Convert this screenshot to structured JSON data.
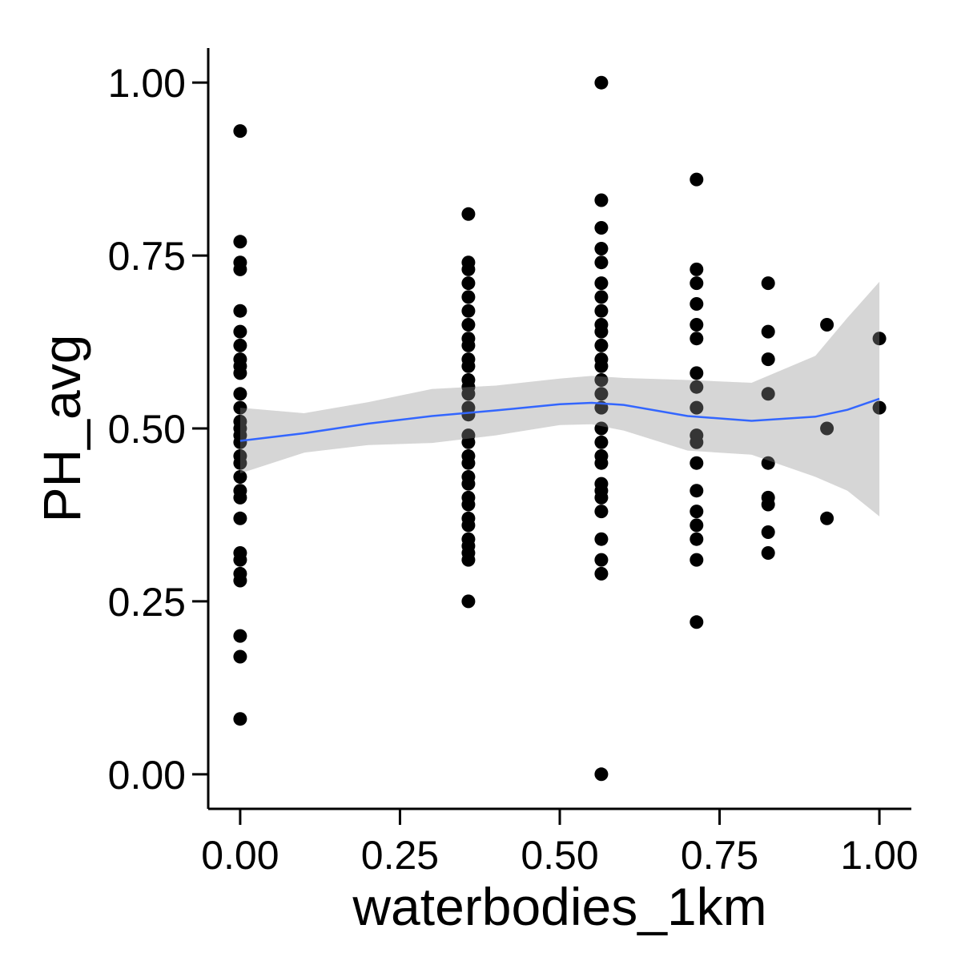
{
  "chart_data": {
    "type": "scatter",
    "xlabel": "waterbodies_1km",
    "ylabel": "PH_avg",
    "xlim": [
      -0.05,
      1.05
    ],
    "ylim": [
      -0.05,
      1.05
    ],
    "x_ticks": [
      0,
      0.25,
      0.5,
      0.75,
      1
    ],
    "y_ticks": [
      0,
      0.25,
      0.5,
      0.75,
      1
    ],
    "x_tick_labels": [
      "0.00",
      "0.25",
      "0.50",
      "0.75",
      "1.00"
    ],
    "y_tick_labels": [
      "0.00",
      "0.25",
      "0.50",
      "0.75",
      "1.00"
    ],
    "grid": false,
    "legend": "none",
    "colors": {
      "points": "#000000",
      "smooth_line": "#3366FF",
      "ribbon": "#d3d3d3",
      "axis": "#000000"
    },
    "series": [
      {
        "kind": "points",
        "points": [
          [
            0,
            0.93
          ],
          [
            0,
            0.77
          ],
          [
            0,
            0.74
          ],
          [
            0,
            0.73
          ],
          [
            0,
            0.67
          ],
          [
            0,
            0.64
          ],
          [
            0,
            0.62
          ],
          [
            0,
            0.6
          ],
          [
            0,
            0.59
          ],
          [
            0,
            0.58
          ],
          [
            0,
            0.55
          ],
          [
            0,
            0.53
          ],
          [
            0,
            0.51
          ],
          [
            0,
            0.5
          ],
          [
            0,
            0.49
          ],
          [
            0,
            0.48
          ],
          [
            0,
            0.46
          ],
          [
            0,
            0.45
          ],
          [
            0,
            0.43
          ],
          [
            0,
            0.41
          ],
          [
            0,
            0.4
          ],
          [
            0,
            0.37
          ],
          [
            0,
            0.32
          ],
          [
            0,
            0.31
          ],
          [
            0,
            0.29
          ],
          [
            0,
            0.28
          ],
          [
            0,
            0.2
          ],
          [
            0,
            0.17
          ],
          [
            0,
            0.08
          ],
          [
            0.357,
            0.81
          ],
          [
            0.357,
            0.74
          ],
          [
            0.357,
            0.73
          ],
          [
            0.357,
            0.71
          ],
          [
            0.357,
            0.69
          ],
          [
            0.357,
            0.67
          ],
          [
            0.357,
            0.65
          ],
          [
            0.357,
            0.63
          ],
          [
            0.357,
            0.62
          ],
          [
            0.357,
            0.6
          ],
          [
            0.357,
            0.59
          ],
          [
            0.357,
            0.57
          ],
          [
            0.357,
            0.56
          ],
          [
            0.357,
            0.55
          ],
          [
            0.357,
            0.53
          ],
          [
            0.357,
            0.52
          ],
          [
            0.357,
            0.49
          ],
          [
            0.357,
            0.48
          ],
          [
            0.357,
            0.46
          ],
          [
            0.357,
            0.45
          ],
          [
            0.357,
            0.43
          ],
          [
            0.357,
            0.42
          ],
          [
            0.357,
            0.4
          ],
          [
            0.357,
            0.39
          ],
          [
            0.357,
            0.37
          ],
          [
            0.357,
            0.36
          ],
          [
            0.357,
            0.34
          ],
          [
            0.357,
            0.33
          ],
          [
            0.357,
            0.32
          ],
          [
            0.357,
            0.31
          ],
          [
            0.357,
            0.25
          ],
          [
            0.565,
            1.0
          ],
          [
            0.565,
            0.83
          ],
          [
            0.565,
            0.79
          ],
          [
            0.565,
            0.76
          ],
          [
            0.565,
            0.74
          ],
          [
            0.565,
            0.71
          ],
          [
            0.565,
            0.69
          ],
          [
            0.565,
            0.67
          ],
          [
            0.565,
            0.65
          ],
          [
            0.565,
            0.64
          ],
          [
            0.565,
            0.62
          ],
          [
            0.565,
            0.6
          ],
          [
            0.565,
            0.59
          ],
          [
            0.565,
            0.57
          ],
          [
            0.565,
            0.55
          ],
          [
            0.565,
            0.53
          ],
          [
            0.565,
            0.5
          ],
          [
            0.565,
            0.48
          ],
          [
            0.565,
            0.46
          ],
          [
            0.565,
            0.45
          ],
          [
            0.565,
            0.42
          ],
          [
            0.565,
            0.41
          ],
          [
            0.565,
            0.4
          ],
          [
            0.565,
            0.38
          ],
          [
            0.565,
            0.34
          ],
          [
            0.565,
            0.31
          ],
          [
            0.565,
            0.29
          ],
          [
            0.565,
            0.0
          ],
          [
            0.714,
            0.86
          ],
          [
            0.714,
            0.73
          ],
          [
            0.714,
            0.71
          ],
          [
            0.714,
            0.68
          ],
          [
            0.714,
            0.65
          ],
          [
            0.714,
            0.63
          ],
          [
            0.714,
            0.58
          ],
          [
            0.714,
            0.56
          ],
          [
            0.714,
            0.53
          ],
          [
            0.714,
            0.49
          ],
          [
            0.714,
            0.48
          ],
          [
            0.714,
            0.45
          ],
          [
            0.714,
            0.41
          ],
          [
            0.714,
            0.38
          ],
          [
            0.714,
            0.36
          ],
          [
            0.714,
            0.34
          ],
          [
            0.714,
            0.31
          ],
          [
            0.714,
            0.22
          ],
          [
            0.826,
            0.71
          ],
          [
            0.826,
            0.64
          ],
          [
            0.826,
            0.6
          ],
          [
            0.826,
            0.55
          ],
          [
            0.826,
            0.45
          ],
          [
            0.826,
            0.4
          ],
          [
            0.826,
            0.39
          ],
          [
            0.826,
            0.35
          ],
          [
            0.826,
            0.32
          ],
          [
            0.918,
            0.65
          ],
          [
            0.918,
            0.5
          ],
          [
            0.918,
            0.37
          ],
          [
            1.0,
            0.63
          ],
          [
            1.0,
            0.53
          ]
        ]
      },
      {
        "kind": "smooth",
        "x": [
          0,
          0.1,
          0.2,
          0.3,
          0.4,
          0.5,
          0.55,
          0.6,
          0.7,
          0.8,
          0.9,
          0.95,
          1.0
        ],
        "y": [
          0.482,
          0.493,
          0.507,
          0.518,
          0.526,
          0.535,
          0.537,
          0.534,
          0.518,
          0.511,
          0.517,
          0.527,
          0.543
        ],
        "lower": [
          0.435,
          0.465,
          0.476,
          0.479,
          0.49,
          0.505,
          0.506,
          0.497,
          0.468,
          0.462,
          0.43,
          0.41,
          0.373
        ],
        "upper": [
          0.53,
          0.522,
          0.538,
          0.557,
          0.562,
          0.572,
          0.576,
          0.573,
          0.57,
          0.566,
          0.605,
          0.66,
          0.712
        ]
      }
    ]
  }
}
